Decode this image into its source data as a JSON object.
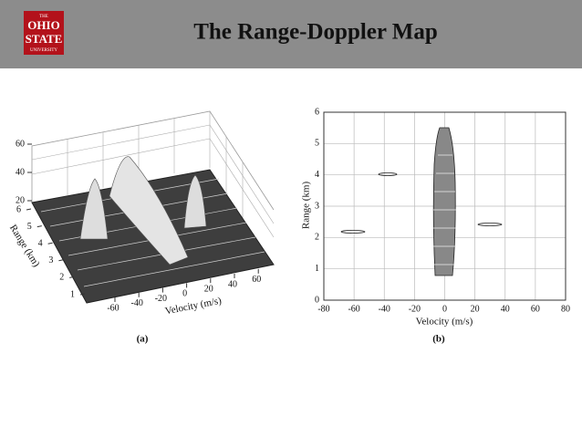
{
  "header": {
    "title": "The Range-Doppler Map",
    "logo": [
      "THE",
      "OHIO",
      "STATE",
      "UNIVERSITY"
    ]
  },
  "figures": [
    {
      "caption": "(a)",
      "x_label": "Velocity (m/s)",
      "y_label": "Range (km)",
      "xticks": [
        -60,
        -40,
        -20,
        0,
        20,
        40,
        60
      ],
      "yticks": [
        1,
        2,
        3,
        4,
        5,
        6
      ],
      "zticks": [
        20,
        40,
        60
      ]
    },
    {
      "caption": "(b)",
      "x_label": "Velocity (m/s)",
      "y_label": "Range (km)",
      "xlim": [
        -80,
        80
      ],
      "ylim": [
        0,
        6
      ],
      "xticks": [
        -80,
        -60,
        -40,
        -20,
        0,
        20,
        40,
        60,
        80
      ],
      "yticks": [
        0,
        1,
        2,
        3,
        4,
        5,
        6
      ]
    }
  ]
}
